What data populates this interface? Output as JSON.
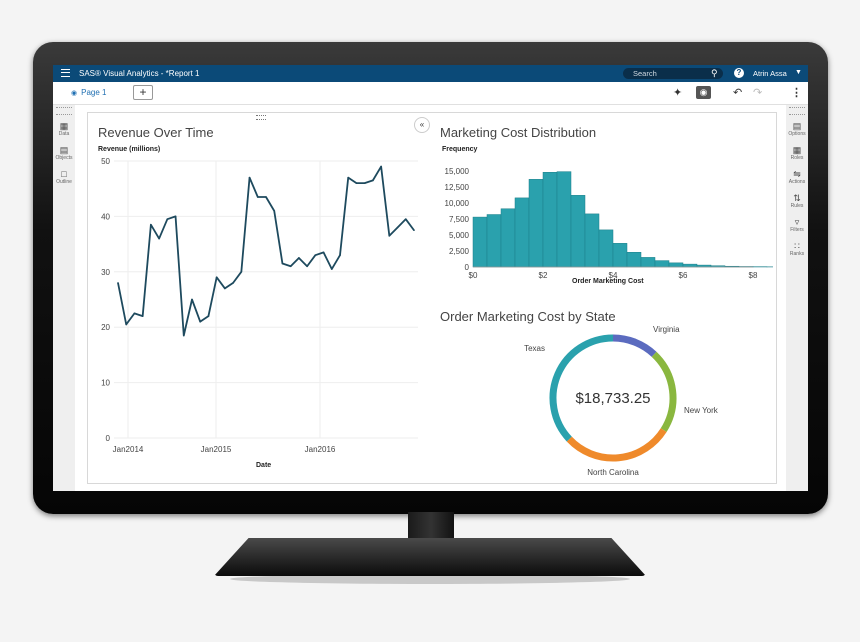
{
  "app": {
    "title": "SAS® Visual Analytics - *Report 1",
    "search_placeholder": "Search",
    "user": "Atrin Assa",
    "accent": "#0b4a78"
  },
  "tabs": [
    {
      "label": "Page 1"
    }
  ],
  "toolbar": {
    "add_label": "+"
  },
  "left_panel": [
    {
      "label": "Data",
      "icon": "data-icon"
    },
    {
      "label": "Objects",
      "icon": "objects-icon"
    },
    {
      "label": "Outline",
      "icon": "outline-icon"
    }
  ],
  "right_panel": [
    {
      "label": "Options",
      "icon": "options-icon"
    },
    {
      "label": "Roles",
      "icon": "roles-icon"
    },
    {
      "label": "Actions",
      "icon": "actions-icon"
    },
    {
      "label": "Rules",
      "icon": "rules-icon"
    },
    {
      "label": "Filters",
      "icon": "filter-icon"
    },
    {
      "label": "Ranks",
      "icon": "ranks-icon"
    }
  ],
  "chart_data": [
    {
      "type": "line",
      "title": "Revenue Over Time",
      "ylabel": "Revenue (millions)",
      "xlabel": "Date",
      "ylim": [
        0,
        50
      ],
      "yticks": [
        0,
        10,
        20,
        30,
        40,
        50
      ],
      "xticks": [
        "Jan2014",
        "Jan2015",
        "Jan2016"
      ],
      "color": "#1e4a5e",
      "values": [
        28,
        20.5,
        22.5,
        22,
        38.5,
        36,
        39.5,
        40,
        18.5,
        25,
        21,
        22,
        29,
        27,
        28,
        30,
        47,
        43.5,
        43.5,
        41,
        31.5,
        31,
        32.5,
        31,
        33,
        33.5,
        30.5,
        33,
        47,
        46,
        46,
        46.5,
        49,
        36.5,
        38,
        39.5,
        37.5
      ]
    },
    {
      "type": "bar",
      "title": "Marketing Cost Distribution",
      "ylabel": "Frequency",
      "xlabel": "Order Marketing Cost",
      "yticks": [
        "0",
        "2,500",
        "5,000",
        "7,500",
        "10,000",
        "12,500",
        "15,000"
      ],
      "ylim": [
        0,
        15000
      ],
      "xticks": [
        "$0",
        "$2",
        "$4",
        "$6",
        "$8"
      ],
      "xlim": [
        0,
        8
      ],
      "bin_width": 0.4,
      "color": "#2aa1ad",
      "values": [
        7800,
        8200,
        9100,
        10800,
        13700,
        14800,
        14900,
        11200,
        8300,
        5800,
        3700,
        2300,
        1500,
        1000,
        650,
        450,
        300,
        200,
        120,
        80,
        50,
        30,
        20,
        10,
        5,
        3,
        2,
        1,
        1,
        0
      ]
    },
    {
      "type": "pie",
      "title": "Order Marketing Cost by State",
      "center_label": "$18,733.25",
      "slices": [
        {
          "label": "Virginia",
          "value": 12,
          "color": "#5b6bbf"
        },
        {
          "label": "New York",
          "value": 22,
          "color": "#8ab73f"
        },
        {
          "label": "North Carolina",
          "value": 29,
          "color": "#ef8a2b"
        },
        {
          "label": "Texas",
          "value": 37,
          "color": "#2aa1ad"
        }
      ]
    }
  ]
}
